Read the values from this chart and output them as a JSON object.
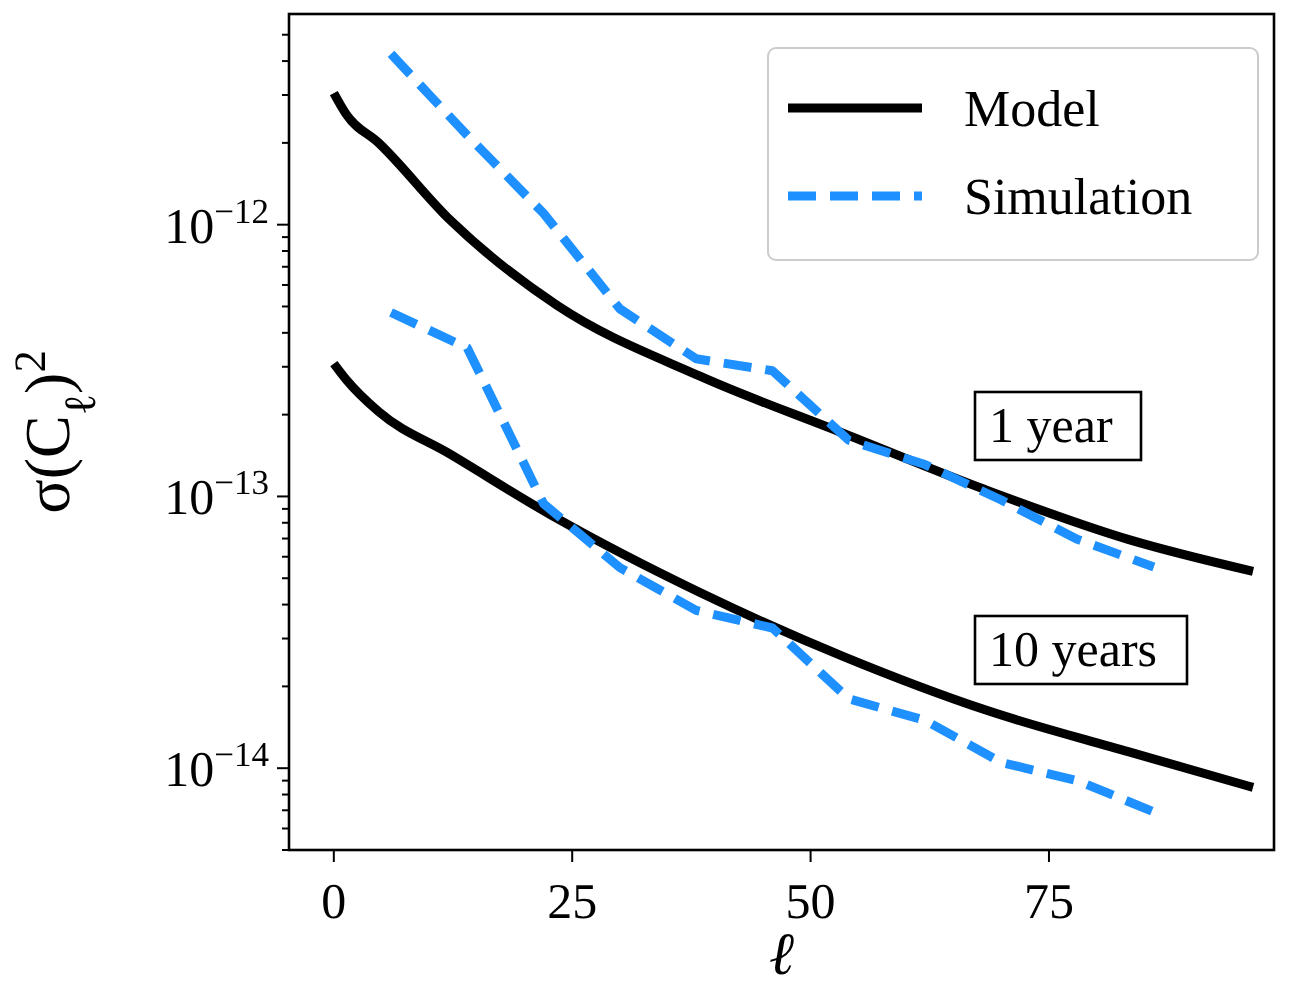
{
  "chart_data": {
    "type": "line",
    "xlabel": "ℓ",
    "ylabel": "σ(C$_{ℓ}$)$^{2}$",
    "log": "y",
    "legend": "top right",
    "xlim": [
      -4.7,
      98.6
    ],
    "xticks": [
      0,
      25,
      50,
      75
    ],
    "ylim": [
      5e-15,
      5.96e-12
    ],
    "yticks": [
      {
        "value": 5e-15,
        "label": null
      },
      {
        "value": 6e-15,
        "label": null
      },
      {
        "value": 7e-15,
        "label": null
      },
      {
        "value": 8e-15,
        "label": null
      },
      {
        "value": 9e-15,
        "label": null
      },
      {
        "value": 1e-14,
        "label": "10$^{−14}$"
      },
      {
        "value": 2e-14,
        "label": null
      },
      {
        "value": 3e-14,
        "label": null
      },
      {
        "value": 4e-14,
        "label": null
      },
      {
        "value": 5e-14,
        "label": null
      },
      {
        "value": 6e-14,
        "label": null
      },
      {
        "value": 7e-14,
        "label": null
      },
      {
        "value": 8e-14,
        "label": null
      },
      {
        "value": 9e-14,
        "label": null
      },
      {
        "value": 1e-13,
        "label": "10$^{−13}$"
      },
      {
        "value": 2e-13,
        "label": null
      },
      {
        "value": 3e-13,
        "label": null
      },
      {
        "value": 4e-13,
        "label": null
      },
      {
        "value": 5e-13,
        "label": null
      },
      {
        "value": 6e-13,
        "label": null
      },
      {
        "value": 7e-13,
        "label": null
      },
      {
        "value": 8e-13,
        "label": null
      },
      {
        "value": 9e-13,
        "label": null
      },
      {
        "value": 1e-12,
        "label": "10$^{−12}$"
      },
      {
        "value": 2e-12,
        "label": null
      },
      {
        "value": 3e-12,
        "label": null
      },
      {
        "value": 4e-12,
        "label": null
      },
      {
        "value": 5e-12,
        "label": null
      }
    ],
    "series": [
      {
        "name": "Model",
        "color": "#000000",
        "line_style": "solid",
        "x": [
          0,
          1.3,
          4.7,
          12.2,
          23.4,
          38.4,
          53.4,
          68.3,
          83.3,
          96.4
        ],
        "values": [
          3.05e-12,
          2.55e-12,
          2e-12,
          1.04e-12,
          5.05e-13,
          2.77e-13,
          1.71e-13,
          1.06e-13,
          6.95e-14,
          5.3e-14
        ]
      },
      {
        "color": "#000000",
        "line_style": "solid",
        "x": [
          0,
          1.3,
          4.7,
          12.2,
          23.4,
          38.4,
          53.4,
          68.3,
          83.3,
          96.4
        ],
        "values": [
          3.08e-13,
          2.69e-13,
          2.05e-13,
          1.43e-13,
          8.3e-14,
          4.43e-14,
          2.58e-14,
          1.64e-14,
          1.15e-14,
          8.5e-15
        ]
      },
      {
        "name": "Simulation",
        "color": "#1e90ff",
        "line_style": "dashed",
        "x": [
          6,
          14,
          22,
          30,
          38,
          46,
          54,
          62,
          70,
          78,
          86
        ],
        "values": [
          4.25e-12,
          2.13e-12,
          1.1e-12,
          4.9e-13,
          3.21e-13,
          2.9e-13,
          1.61e-13,
          1.31e-13,
          9.7e-14,
          6.95e-14,
          5.5e-14
        ]
      },
      {
        "color": "#1e90ff",
        "line_style": "dashed",
        "x": [
          6,
          14,
          22,
          30,
          38,
          46,
          54,
          62,
          70,
          78,
          86
        ],
        "values": [
          4.75e-13,
          3.52e-13,
          9.4e-14,
          5.47e-14,
          3.81e-14,
          3.28e-14,
          1.8e-14,
          1.5e-14,
          1.05e-14,
          9e-15,
          6.9e-15
        ]
      }
    ],
    "annotations": [
      "1 year",
      "10 years"
    ]
  }
}
